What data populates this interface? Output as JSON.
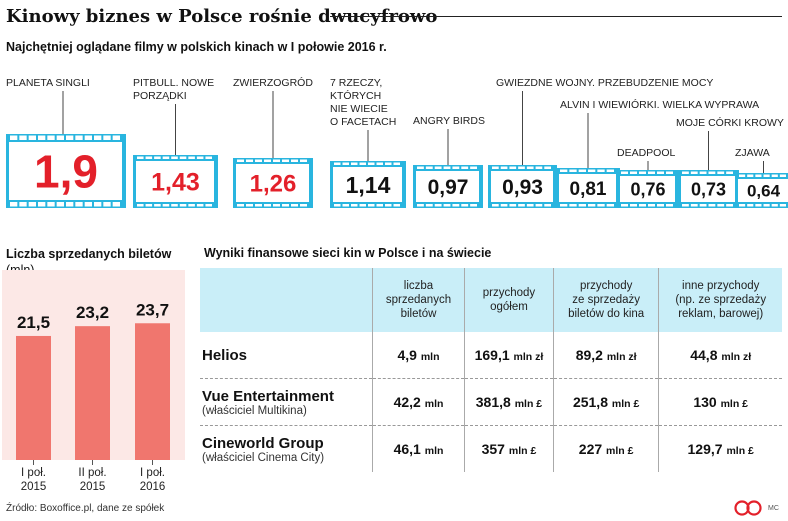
{
  "title": "Kinowy biznes w Polsce rośnie dwucyfrowo",
  "films_subtitle": "Najchętniej oglądane filmy w polskich kinach w I połowie 2016 r.",
  "tickets_title": "Liczba sprzedanych biletów",
  "tickets_unit": "(mln)",
  "financial_subtitle": "Wyniki finansowe sieci kin w Polsce i na świecie",
  "source": "Źródło: Boxoffice.pl, dane ze spółek",
  "initials": "MC",
  "colors": {
    "film_frame": "#29b5df",
    "highlight_value": "#e3202a",
    "dark_value": "#111111",
    "ticket_bar": "#f0766e",
    "ticket_panel": "#fce8e6",
    "table_header": "#c9eef8",
    "logo": "#e3202a"
  },
  "chart_data": [
    {
      "type": "bar",
      "title": "Najchętniej oglądane filmy w polskich kinach w I połowie 2016 r.",
      "categories": [
        "PLANETA SINGLI",
        "PITBULL. NOWE PORZĄDKI",
        "ZWIERZOGRÓD",
        "7 RZECZY, KTÓRYCH NIE WIECIE O FACETACH",
        "ANGRY BIRDS",
        "GWIEZDNE WOJNY. PRZEBUDZENIE MOCY",
        "ALVIN I WIEWIÓRKI. WIELKA WYPRAWA",
        "DEADPOOL",
        "MOJE CÓRKI KROWY",
        "ZJAWA"
      ],
      "category_lines": [
        [
          "PLANETA SINGLI"
        ],
        [
          "PITBULL. NOWE",
          "PORZĄDKI"
        ],
        [
          "ZWIERZOGRÓD"
        ],
        [
          "7 RZECZY,",
          "KTÓRYCH",
          "NIE WIECIE",
          "O FACETACH"
        ],
        [
          "ANGRY BIRDS"
        ],
        [
          "GWIEZDNE WOJNY. PRZEBUDZENIE MOCY"
        ],
        [
          "ALVIN I WIEWIÓRKI. WIELKA WYPRAWA"
        ],
        [
          "DEADPOOL"
        ],
        [
          "MOJE CÓRKI KROWY"
        ],
        [
          "ZJAWA"
        ]
      ],
      "values": [
        1.9,
        1.43,
        1.26,
        1.14,
        0.97,
        0.93,
        0.81,
        0.76,
        0.73,
        0.64
      ],
      "value_labels": [
        "1,9",
        "1,43",
        "1,26",
        "1,14",
        "0,97",
        "0,93",
        "0,81",
        "0,76",
        "0,73",
        "0,64"
      ],
      "highlighted": [
        true,
        true,
        true,
        false,
        false,
        false,
        false,
        false,
        false,
        false
      ]
    },
    {
      "type": "bar",
      "title": "Liczba sprzedanych biletów",
      "ylabel": "(mln)",
      "categories": [
        "I poł. 2015",
        "II poł. 2015",
        "I poł. 2016"
      ],
      "category_lines": [
        [
          "I poł.",
          "2015"
        ],
        [
          "II poł.",
          "2015"
        ],
        [
          "I poł.",
          "2016"
        ]
      ],
      "values": [
        21.5,
        23.2,
        23.7
      ],
      "value_labels": [
        "21,5",
        "23,2",
        "23,7"
      ]
    },
    {
      "type": "table",
      "title": "Wyniki finansowe sieci kin w Polsce i na świecie",
      "columns": [
        "liczba sprzedanych biletów",
        "przychody ogółem",
        "przychody ze sprzedaży biletów do kina",
        "inne przychody (np. ze sprzedaży reklam, barowej)"
      ],
      "column_lines": [
        [
          "liczba",
          "sprzedanych",
          "biletów"
        ],
        [
          "przychody",
          "ogółem"
        ],
        [
          "przychody",
          "ze sprzedaży",
          "biletów do kina"
        ],
        [
          "inne przychody",
          "(np. ze sprzedaży",
          "reklam, barowej)"
        ]
      ],
      "rows": [
        {
          "name": "Helios",
          "owner": "",
          "cells": [
            {
              "v": "4,9",
              "u": "mln"
            },
            {
              "v": "169,1",
              "u": "mln zł"
            },
            {
              "v": "89,2",
              "u": "mln zł"
            },
            {
              "v": "44,8",
              "u": "mln zł"
            }
          ]
        },
        {
          "name": "Vue Entertainment",
          "owner": "(właściciel Multikina)",
          "cells": [
            {
              "v": "42,2",
              "u": "mln"
            },
            {
              "v": "381,8",
              "u": "mln £"
            },
            {
              "v": "251,8",
              "u": "mln £"
            },
            {
              "v": "130",
              "u": "mln £"
            }
          ]
        },
        {
          "name": "Cineworld Group",
          "owner": "(właściciel Cinema City)",
          "cells": [
            {
              "v": "46,1",
              "u": "mln"
            },
            {
              "v": "357",
              "u": "mln £"
            },
            {
              "v": "227",
              "u": "mln £"
            },
            {
              "v": "129,7",
              "u": "mln £"
            }
          ]
        }
      ]
    }
  ]
}
